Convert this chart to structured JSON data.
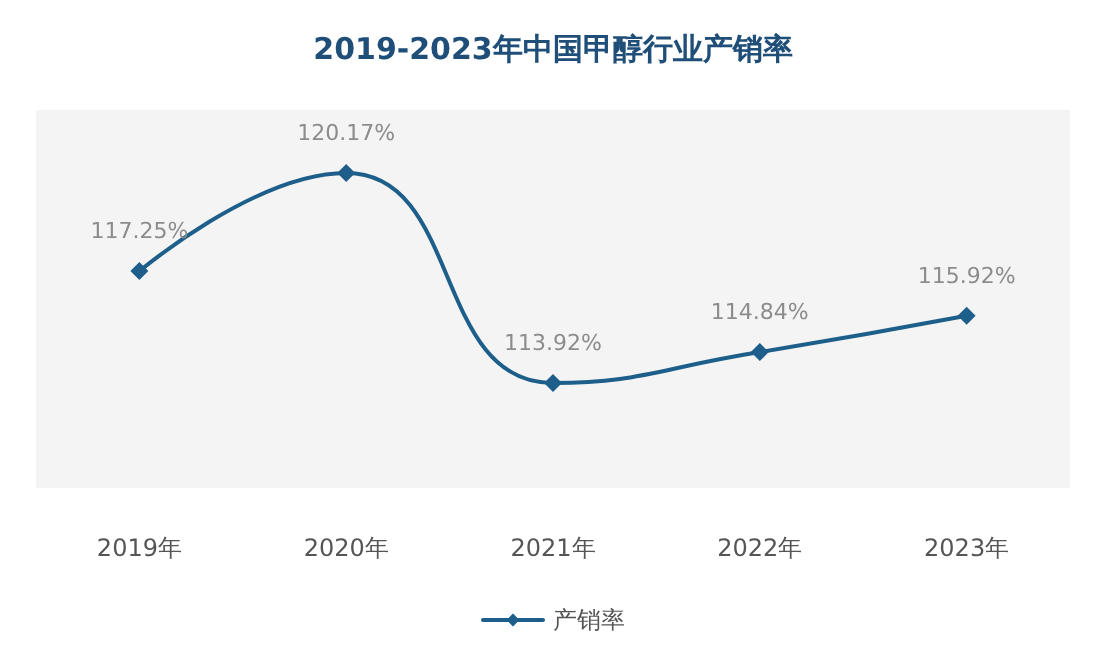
{
  "chart_data": {
    "type": "line",
    "title": "2019-2023年中国甲醇行业产销率",
    "categories": [
      "2019年",
      "2020年",
      "2021年",
      "2022年",
      "2023年"
    ],
    "series": [
      {
        "name": "产销率",
        "color": "#1d5f8a",
        "values": [
          117.25,
          120.17,
          113.92,
          114.84,
          115.92
        ],
        "value_labels": [
          "117.25%",
          "120.17%",
          "113.92%",
          "114.84%",
          "115.92%"
        ]
      }
    ],
    "tick_labels": "x",
    "grid": false,
    "legend": "bottom",
    "marker": "diamond",
    "line_style": "solid"
  }
}
